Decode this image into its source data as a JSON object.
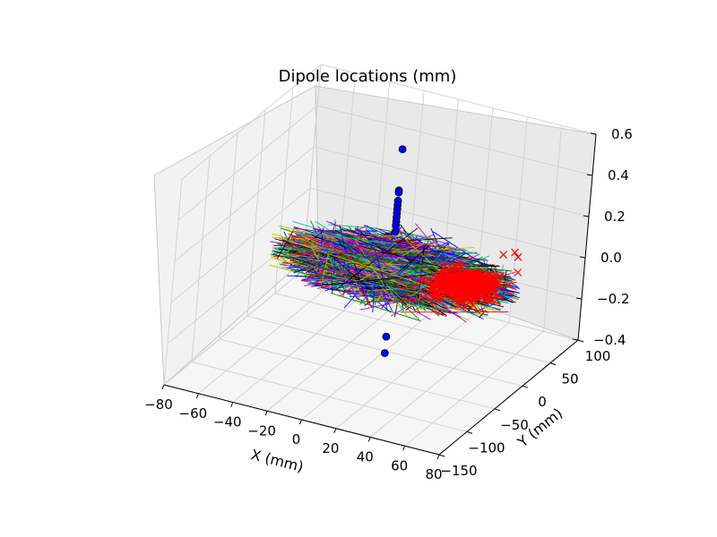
{
  "chart_data": {
    "type": "scatter3d",
    "title": "Dipole locations (mm)",
    "xlabel": "X (mm)",
    "ylabel": "Y (mm)",
    "zlabel": "",
    "x_ticks": [
      "−80",
      "−60",
      "−40",
      "−20",
      "0",
      "20",
      "40",
      "60",
      "80"
    ],
    "y_ticks": [
      "−150",
      "−100",
      "−50",
      "0",
      "50",
      "100"
    ],
    "z_ticks": [
      "−0.4",
      "−0.2",
      "0.0",
      "0.2",
      "0.4",
      "0.6"
    ],
    "xlim": [
      -80,
      80
    ],
    "ylim": [
      -150,
      100
    ],
    "zlim": [
      -0.4,
      0.6
    ],
    "grid": true,
    "series": [
      {
        "marker": "circle",
        "color": "#0000ff",
        "points": [
          [
            0,
            0,
            0.58
          ],
          [
            0,
            0,
            0.38
          ],
          [
            0,
            0,
            0.37
          ],
          [
            0,
            0,
            0.33
          ],
          [
            0,
            0,
            0.31
          ],
          [
            0,
            0,
            0.29
          ],
          [
            0,
            0,
            0.27
          ],
          [
            0,
            0,
            0.25
          ],
          [
            0,
            0,
            0.23
          ],
          [
            0,
            0,
            0.21
          ],
          [
            0,
            0,
            0.18
          ],
          [
            0,
            0,
            -0.33
          ],
          [
            0,
            0,
            -0.41
          ]
        ]
      },
      {
        "marker": "x",
        "color": "#ff0000",
        "cluster": {
          "x_range": [
            10,
            70
          ],
          "y_range": [
            -40,
            60
          ],
          "z_range": [
            -0.06,
            0.03
          ],
          "count": 520
        },
        "outliers": [
          [
            45,
            60,
            0.03
          ],
          [
            55,
            55,
            0.05
          ],
          [
            60,
            40,
            0.02
          ],
          [
            50,
            65,
            0.04
          ]
        ]
      },
      {
        "marker": "line-mesh",
        "colors": [
          "#008000",
          "#0000ff",
          "#ff0000",
          "#00bfbf",
          "#bf00bf",
          "#bfbf00",
          "#000000"
        ],
        "cluster": {
          "x_range": [
            -70,
            70
          ],
          "y_range": [
            -60,
            70
          ],
          "z_range": [
            -0.1,
            0.07
          ],
          "segments": 1200
        }
      }
    ]
  }
}
